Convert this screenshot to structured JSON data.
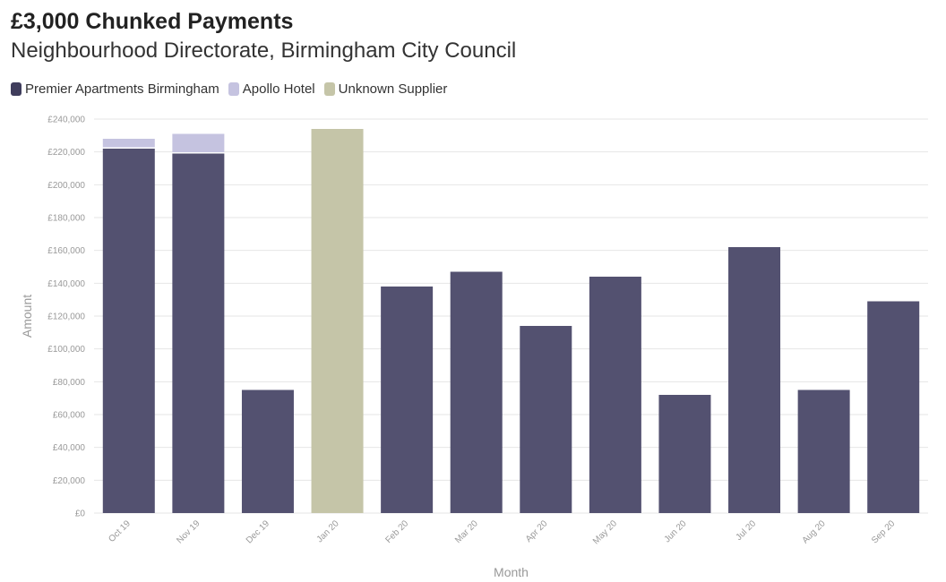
{
  "chart_data": {
    "type": "bar",
    "stacked": true,
    "title": "£3,000 Chunked Payments",
    "subtitle": "Neighbourhood Directorate, Birmingham City Council",
    "xlabel": "Month",
    "ylabel": "Amount",
    "ylim": [
      0,
      240000
    ],
    "yticks": [
      "£0",
      "£20,000",
      "£40,000",
      "£60,000",
      "£80,000",
      "£100,000",
      "£120,000",
      "£140,000",
      "£160,000",
      "£180,000",
      "£200,000",
      "£220,000",
      "£240,000"
    ],
    "grid": true,
    "legend_position": "top-left",
    "categories": [
      "Oct 19",
      "Nov 19",
      "Dec 19",
      "Jan 20",
      "Feb 20",
      "Mar 20",
      "Apr 20",
      "May 20",
      "Jun 20",
      "Jul 20",
      "Aug 20",
      "Sep 20"
    ],
    "series": [
      {
        "name": "Premier Apartments Birmingham",
        "color": "#535170",
        "values": [
          222000,
          219000,
          75000,
          0,
          138000,
          147000,
          114000,
          144000,
          72000,
          162000,
          75000,
          129000
        ]
      },
      {
        "name": "Apollo Hotel",
        "color": "#c5c3e0",
        "values": [
          6000,
          12000,
          0,
          0,
          0,
          0,
          0,
          0,
          0,
          0,
          0,
          0
        ]
      },
      {
        "name": "Unknown Supplier",
        "color": "#c5c5a8",
        "values": [
          0,
          0,
          0,
          234000,
          0,
          0,
          0,
          0,
          0,
          0,
          0,
          0
        ]
      }
    ]
  }
}
